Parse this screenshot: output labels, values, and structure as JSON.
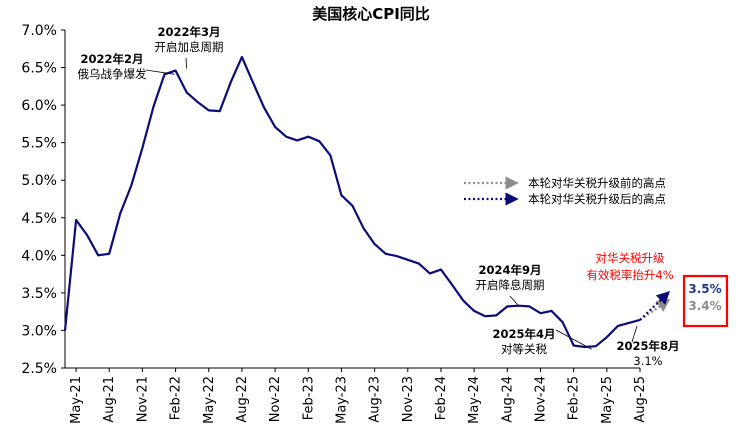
{
  "chart_data": {
    "type": "line",
    "title": "美国核心CPI同比",
    "ylim": [
      2.5,
      7.0
    ],
    "y_ticks": [
      "7.0%",
      "6.5%",
      "6.0%",
      "5.5%",
      "5.0%",
      "4.5%",
      "4.0%",
      "3.5%",
      "3.0%",
      "2.5%"
    ],
    "x_tick_labels": [
      "May-21",
      "Aug-21",
      "Nov-21",
      "Feb-22",
      "May-22",
      "Aug-22",
      "Nov-22",
      "Feb-23",
      "May-23",
      "Aug-23",
      "Nov-23",
      "Feb-24",
      "May-24",
      "Aug-24",
      "Nov-24",
      "Feb-25",
      "May-25",
      "Aug-25"
    ],
    "x": [
      "2021-04",
      "2021-05",
      "2021-06",
      "2021-07",
      "2021-08",
      "2021-09",
      "2021-10",
      "2021-11",
      "2021-12",
      "2022-01",
      "2022-02",
      "2022-03",
      "2022-04",
      "2022-05",
      "2022-06",
      "2022-07",
      "2022-08",
      "2022-09",
      "2022-10",
      "2022-11",
      "2022-12",
      "2023-01",
      "2023-02",
      "2023-03",
      "2023-04",
      "2023-05",
      "2023-06",
      "2023-07",
      "2023-08",
      "2023-09",
      "2023-10",
      "2023-11",
      "2023-12",
      "2024-01",
      "2024-02",
      "2024-03",
      "2024-04",
      "2024-05",
      "2024-06",
      "2024-07",
      "2024-08",
      "2024-09",
      "2024-10",
      "2024-11",
      "2024-12",
      "2025-01",
      "2025-02",
      "2025-03",
      "2025-04",
      "2025-05",
      "2025-06",
      "2025-07",
      "2025-08"
    ],
    "series": [
      {
        "values": [
          3.0,
          4.47,
          4.27,
          4.0,
          4.02,
          4.56,
          4.93,
          5.43,
          5.98,
          6.41,
          6.46,
          6.17,
          6.04,
          5.93,
          5.92,
          6.31,
          6.64,
          6.3,
          5.97,
          5.71,
          5.58,
          5.53,
          5.58,
          5.52,
          5.33,
          4.8,
          4.66,
          4.36,
          4.15,
          4.02,
          3.99,
          3.94,
          3.89,
          3.76,
          3.81,
          3.61,
          3.4,
          3.26,
          3.19,
          3.2,
          3.32,
          3.33,
          3.32,
          3.23,
          3.26,
          3.11,
          2.8,
          2.78,
          2.79,
          2.91,
          3.06,
          3.1,
          3.14
        ],
        "color": "#0c0c78"
      },
      {
        "name": "本轮对华关税升级前的高点",
        "style": "dotted-arrow",
        "x": [
          "2025-08",
          "2025-10"
        ],
        "values": [
          3.14,
          3.4
        ],
        "color": "#8c8c8c"
      },
      {
        "name": "本轮对华关税升级后的高点",
        "style": "dotted-arrow",
        "x": [
          "2025-08",
          "2025-10"
        ],
        "values": [
          3.14,
          3.5
        ],
        "color": "#0c0c78"
      }
    ],
    "annotations": [
      {
        "line1": "2022年3月",
        "line2": "开启加息周期",
        "x": "2022-03",
        "y": 6.46
      },
      {
        "line1": "2022年2月",
        "line2": "俄乌战争爆发",
        "x": "2022-02",
        "y": 6.41
      },
      {
        "line1": "2024年9月",
        "line2": "开启降息周期",
        "x": "2024-09",
        "y": 3.33
      },
      {
        "line1": "2025年4月",
        "line2": "对等关税",
        "x": "2025-04",
        "y": 2.79
      },
      {
        "line1": "2025年8月",
        "line2": "3.1%",
        "x": "2025-08",
        "y": 3.1
      }
    ],
    "red_note": [
      "对华关税升级",
      "有效税率抬升4%"
    ],
    "end_labels": {
      "upper": "3.5%",
      "lower": "3.4%"
    }
  },
  "colors": {
    "line": "#0c0c78",
    "gray_arrow": "#8c8c8c",
    "red": "#ff0000",
    "upper_label": "#1f3a93",
    "lower_label": "#8c8c8c"
  }
}
